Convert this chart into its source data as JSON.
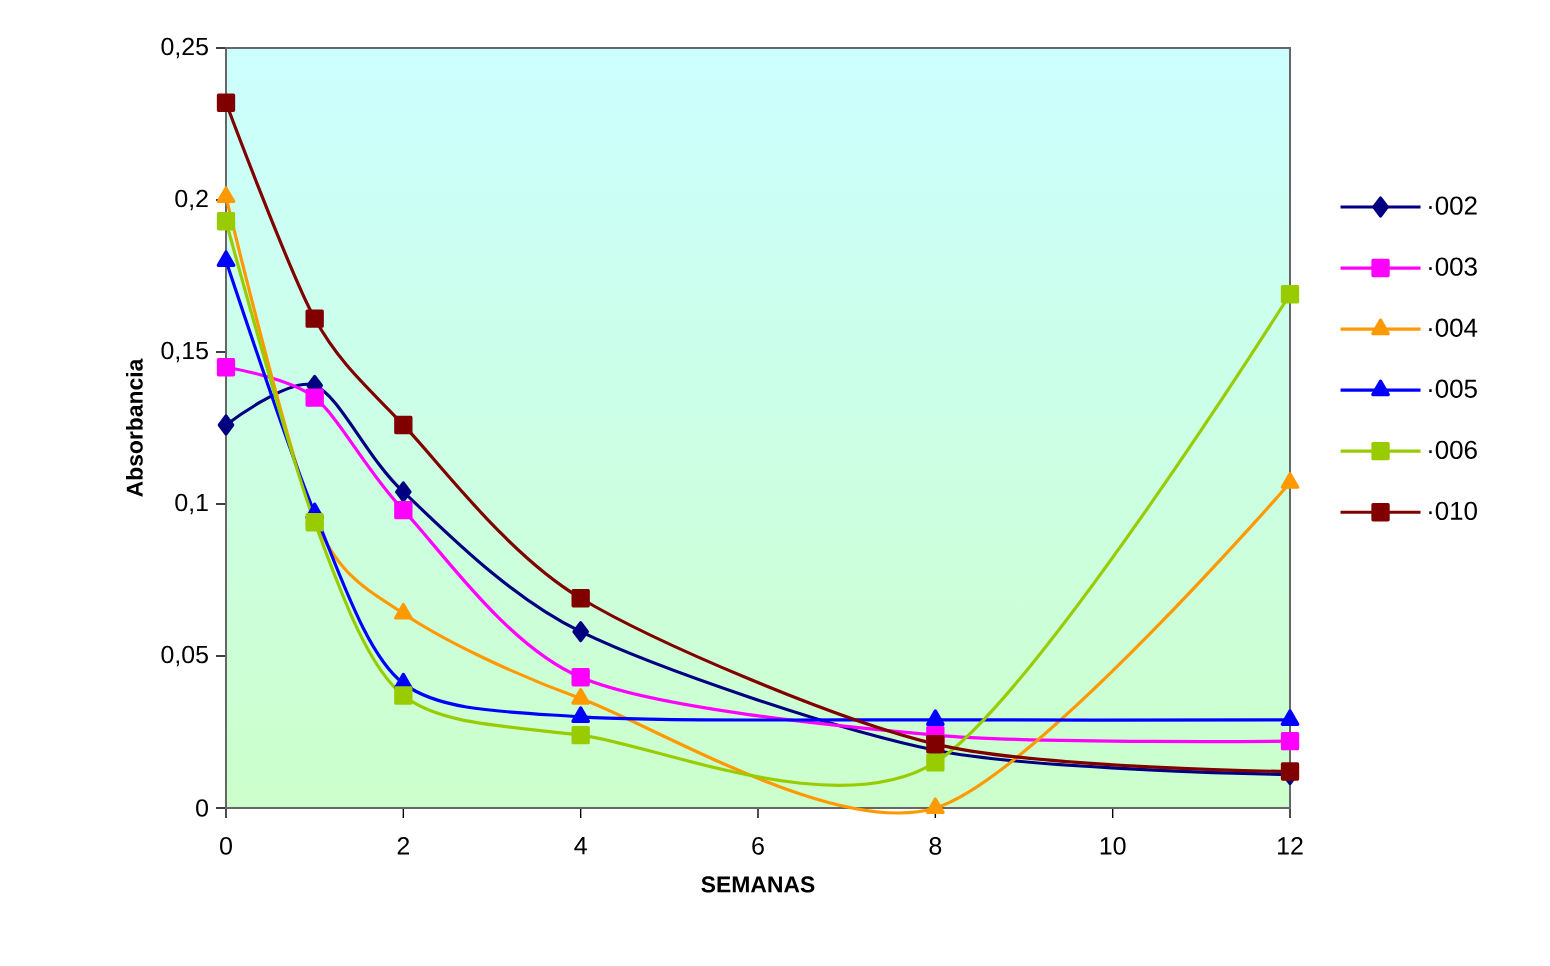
{
  "chart_data": {
    "type": "line",
    "xlabel": "SEMANAS",
    "ylabel": "Absorbancia",
    "x": [
      0,
      1,
      2,
      4,
      8,
      12
    ],
    "xlim": [
      0,
      12
    ],
    "xticks": [
      0,
      2,
      4,
      6,
      8,
      10,
      12
    ],
    "ylim": [
      0,
      0.25
    ],
    "yticks": [
      {
        "value": 0,
        "label": "0"
      },
      {
        "value": 0.05,
        "label": "0,05"
      },
      {
        "value": 0.1,
        "label": "0,1"
      },
      {
        "value": 0.15,
        "label": "0,15"
      },
      {
        "value": 0.2,
        "label": "0,2"
      },
      {
        "value": 0.25,
        "label": "0,25"
      }
    ],
    "legend": "right",
    "grid": false,
    "series": [
      {
        "name": "·002",
        "color": "#000080",
        "marker": "diamond",
        "values": [
          0.126,
          0.139,
          0.104,
          0.058,
          0.019,
          0.011
        ]
      },
      {
        "name": "·003",
        "color": "#ff00ff",
        "marker": "square",
        "values": [
          0.145,
          0.135,
          0.098,
          0.043,
          0.024,
          0.022
        ]
      },
      {
        "name": "·004",
        "color": "#ff9900",
        "marker": "triangle",
        "values": [
          0.201,
          0.095,
          0.064,
          0.036,
          0,
          0.107
        ]
      },
      {
        "name": "·005",
        "color": "#0000ff",
        "marker": "triangle",
        "values": [
          0.18,
          0.097,
          0.041,
          0.03,
          0.029,
          0.029
        ]
      },
      {
        "name": "·006",
        "color": "#99cc00",
        "marker": "square",
        "values": [
          0.193,
          0.094,
          0.037,
          0.024,
          0.015,
          0.169
        ]
      },
      {
        "name": "·010",
        "color": "#800000",
        "marker": "square",
        "values": [
          0.232,
          0.161,
          0.126,
          0.069,
          0.021,
          0.012
        ]
      }
    ]
  }
}
